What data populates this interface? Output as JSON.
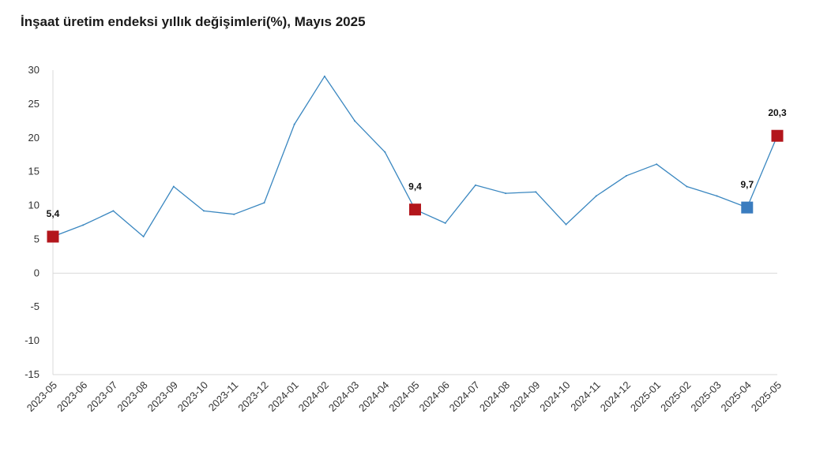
{
  "chart_data": {
    "type": "line",
    "title": "İnşaat üretim endeksi yıllık değişimleri(%), Mayıs 2025",
    "xlabel": "",
    "ylabel": "",
    "ylim": [
      -15,
      30
    ],
    "yticks": [
      30,
      25,
      20,
      15,
      10,
      5,
      0,
      -5,
      -10,
      -15
    ],
    "grid": "zero-line-only",
    "legend": "none",
    "categories": [
      "2023-05",
      "2023-06",
      "2023-07",
      "2023-08",
      "2023-09",
      "2023-10",
      "2023-11",
      "2023-12",
      "2024-01",
      "2024-02",
      "2024-03",
      "2024-04",
      "2024-05",
      "2024-06",
      "2024-07",
      "2024-08",
      "2024-09",
      "2024-10",
      "2024-11",
      "2024-12",
      "2025-01",
      "2025-02",
      "2025-03",
      "2025-04",
      "2025-05"
    ],
    "series": [
      {
        "color": "#3a87c0",
        "values": [
          5.4,
          7.1,
          9.2,
          5.4,
          12.8,
          9.2,
          8.7,
          10.4,
          22.0,
          29.1,
          22.5,
          17.9,
          9.4,
          7.4,
          13.0,
          11.8,
          12.0,
          7.2,
          11.4,
          14.4,
          16.1,
          12.8,
          11.4,
          9.7,
          20.3
        ]
      }
    ],
    "highlights": [
      {
        "index": 0,
        "label": "5,4",
        "color": "#b3161c"
      },
      {
        "index": 12,
        "label": "9,4",
        "color": "#b3161c"
      },
      {
        "index": 23,
        "label": "9,7",
        "color": "#3a7cbf"
      },
      {
        "index": 24,
        "label": "20,3",
        "color": "#b3161c"
      }
    ],
    "axis_color": "#d9d9d9"
  }
}
